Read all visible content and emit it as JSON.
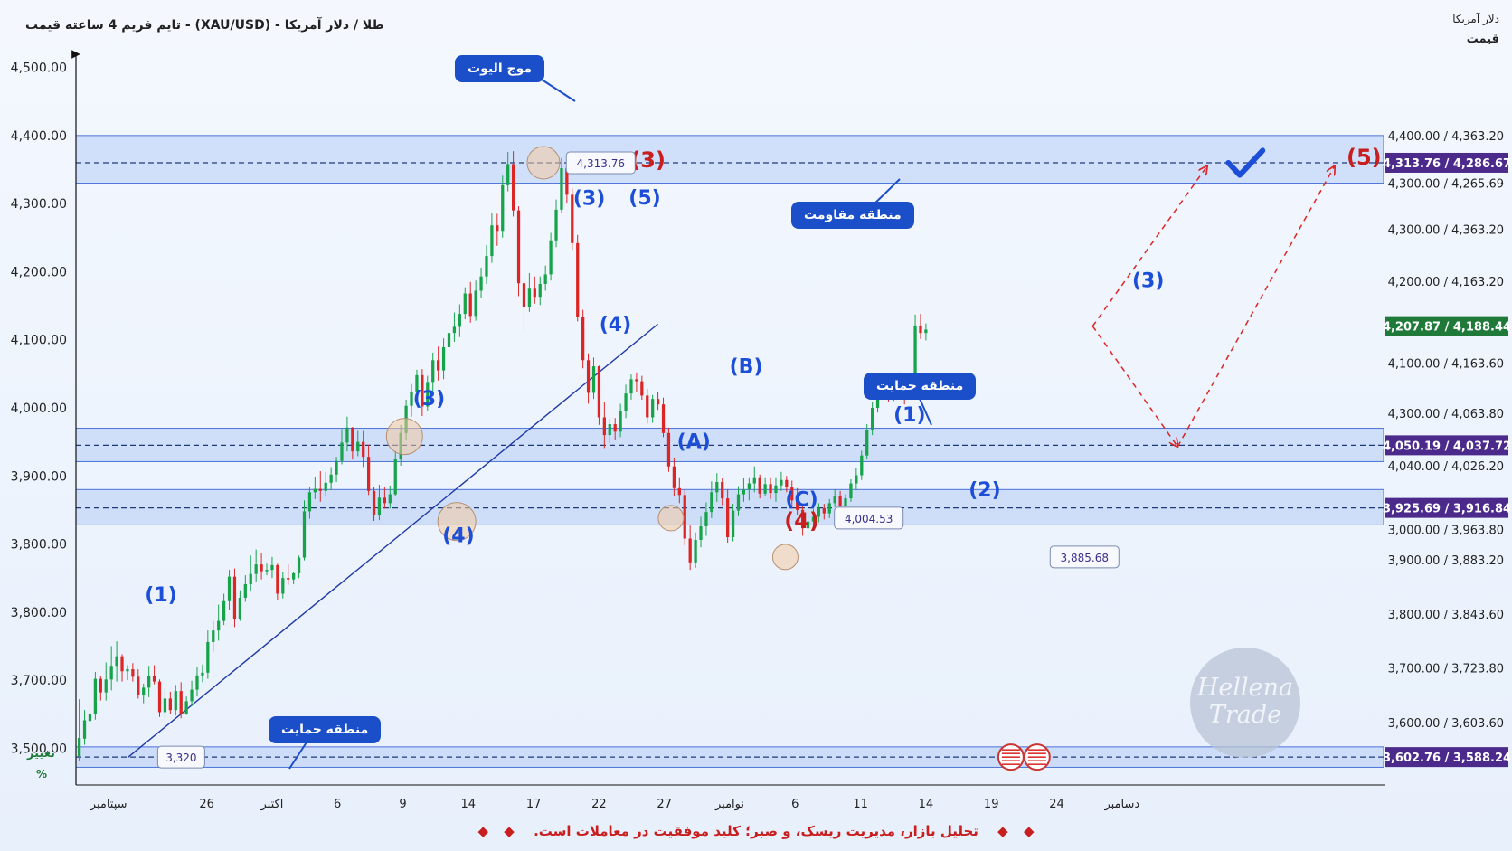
{
  "header": {
    "title": "طلا / دلار آمریکا - (XAU/USD) -  تایم فریم 4 ساعته   قیمت",
    "right_unit": "دلار آمریکا",
    "right_axis_title": "قیمت",
    "change_label": "تغییر",
    "percent_label": "%"
  },
  "footer": {
    "text": "تحلیل بازار، مدیریت ریسک، و صبر؛ کلید موفقیت در معاملات است.",
    "diamond": "◆"
  },
  "watermark": {
    "line1": "Hellena",
    "line2": "Trade"
  },
  "colors": {
    "up": "#16a34a",
    "down": "#dc2626",
    "wave_blue": "#1d4ed8",
    "wave_red": "#c81e1e",
    "zone_fill": "#bcd1f7",
    "zone_stroke": "#4a72d8",
    "callout": "#1a4fc9",
    "badge_purple": "#4b2a8c",
    "badge_green": "#1f7a3a",
    "trend": "#1f3aa8",
    "projection": "#e02424"
  },
  "chart_data": {
    "type": "candlestick",
    "title": "طلا / دلار آمریکا - (XAU/USD) - تایم فریم 4 ساعته قیمت",
    "x_axis": {
      "ticks": [
        "سپتامبر",
        "26",
        "اکتبر",
        "6",
        "9",
        "14",
        "17",
        "22",
        "27",
        "نوامبر",
        "6",
        "11",
        "14",
        "19",
        "24",
        "دسامبر"
      ]
    },
    "y_axis": {
      "left_ticks": [
        "4,500.00",
        "4,400.00",
        "4,300.00",
        "4,200.00",
        "4,100.00",
        "4,000.00",
        "3,900.00",
        "3,800.00",
        "3,800.00",
        "3,700.00",
        "3,500.00"
      ],
      "right_ticks": [
        "4,400.00 / 4,363.20",
        "4,300.00 / 4,265.69",
        "4,300.00 / 4,363.20",
        "4,200.00 / 4,163.20",
        "4,100.00 / 4,163.60",
        "4,300.00 / 4,063.80",
        "4,040.00 / 4,026.20",
        "3,000.00 / 3,963.80",
        "3,900.00 / 3,883.20",
        "3,800.00 / 3,843.60",
        "3,700.00 / 3,723.80",
        "3,600.00 / 3,603.60"
      ]
    },
    "price_badges": [
      {
        "text": "4,313.76 / 4,286.67",
        "level": 4360,
        "style": "purple"
      },
      {
        "text": "4,207.87 / 4,188.44",
        "level": 4120,
        "style": "green"
      },
      {
        "text": "4,050.19 / 4,037.72",
        "level": 3945,
        "style": "purple"
      },
      {
        "text": "3,925.69 / 3,916.84",
        "level": 3853,
        "style": "purple"
      },
      {
        "text": "3,602.76 / 3,588.24",
        "level": 3487,
        "style": "purple"
      }
    ],
    "zones": [
      {
        "name": "resistance",
        "from": 4330,
        "to": 4400,
        "mid": 4360
      },
      {
        "name": "support-mid",
        "from": 3921,
        "to": 3970,
        "mid": 3945
      },
      {
        "name": "support-low",
        "from": 3828,
        "to": 3880,
        "mid": 3853
      },
      {
        "name": "support-bottom",
        "from": 3472,
        "to": 3502,
        "mid": 3487
      }
    ],
    "callouts": [
      {
        "id": "wave-top",
        "text": "موج الیوت"
      },
      {
        "id": "resistance",
        "text": "منطقه مقاومت"
      },
      {
        "id": "support",
        "text": "منطقه حمایت"
      },
      {
        "id": "support-bottom",
        "text": "منطقه حمایت"
      }
    ],
    "price_notes": [
      {
        "text": "4,313.76",
        "x": 15,
        "y": 4360
      },
      {
        "text": "4,004.53",
        "x": 23.2,
        "y": 3838
      },
      {
        "text": "3,885.68",
        "x": 29.8,
        "y": 3781
      },
      {
        "text": "3,320",
        "x": 2.5,
        "y": 3487
      }
    ],
    "wave_labels": [
      {
        "text": "(1)",
        "x": 2.6,
        "y": 3716,
        "color": "blue"
      },
      {
        "text": "(3)",
        "x": 10.8,
        "y": 4004,
        "color": "blue"
      },
      {
        "text": "(4)",
        "x": 11.7,
        "y": 3803,
        "color": "blue"
      },
      {
        "text": "(3)",
        "x": 15.7,
        "y": 4298,
        "color": "blue"
      },
      {
        "text": "(5)",
        "x": 17.4,
        "y": 4299,
        "color": "blue"
      },
      {
        "text": "(4)",
        "x": 16.5,
        "y": 4113,
        "color": "blue"
      },
      {
        "text": "(3)",
        "x": 17.5,
        "y": 4353,
        "color": "red"
      },
      {
        "text": "(B)",
        "x": 20.5,
        "y": 4051,
        "color": "blue"
      },
      {
        "text": "(A)",
        "x": 18.9,
        "y": 3941,
        "color": "blue"
      },
      {
        "text": "(C)",
        "x": 22.2,
        "y": 3856,
        "color": "blue"
      },
      {
        "text": "(4)",
        "x": 22.2,
        "y": 3823,
        "color": "red"
      },
      {
        "text": "(1)",
        "x": 25.5,
        "y": 3980,
        "color": "blue"
      },
      {
        "text": "(2)",
        "x": 27.8,
        "y": 3870,
        "color": "blue"
      },
      {
        "text": "(3)",
        "x": 32.8,
        "y": 4177,
        "color": "blue"
      },
      {
        "text": "(5)",
        "x": 39.4,
        "y": 4357,
        "color": "red"
      }
    ],
    "ohlc": [
      {
        "o": 3488,
        "h": 3572,
        "l": 3482,
        "c": 3515
      },
      {
        "o": 3514,
        "h": 3556,
        "l": 3505,
        "c": 3541
      },
      {
        "o": 3540,
        "h": 3567,
        "l": 3529,
        "c": 3550
      },
      {
        "o": 3550,
        "h": 3612,
        "l": 3542,
        "c": 3602
      },
      {
        "o": 3602,
        "h": 3606,
        "l": 3570,
        "c": 3582
      },
      {
        "o": 3582,
        "h": 3626,
        "l": 3570,
        "c": 3601
      },
      {
        "o": 3601,
        "h": 3650,
        "l": 3585,
        "c": 3621
      },
      {
        "o": 3621,
        "h": 3657,
        "l": 3598,
        "c": 3635
      },
      {
        "o": 3635,
        "h": 3638,
        "l": 3598,
        "c": 3613
      },
      {
        "o": 3613,
        "h": 3622,
        "l": 3600,
        "c": 3616
      },
      {
        "o": 3616,
        "h": 3625,
        "l": 3598,
        "c": 3605
      },
      {
        "o": 3605,
        "h": 3616,
        "l": 3573,
        "c": 3578
      },
      {
        "o": 3578,
        "h": 3595,
        "l": 3566,
        "c": 3589
      },
      {
        "o": 3589,
        "h": 3621,
        "l": 3575,
        "c": 3606
      },
      {
        "o": 3606,
        "h": 3622,
        "l": 3594,
        "c": 3598
      },
      {
        "o": 3598,
        "h": 3601,
        "l": 3546,
        "c": 3553
      },
      {
        "o": 3553,
        "h": 3588,
        "l": 3545,
        "c": 3573
      },
      {
        "o": 3573,
        "h": 3583,
        "l": 3550,
        "c": 3556
      },
      {
        "o": 3556,
        "h": 3593,
        "l": 3548,
        "c": 3584
      },
      {
        "o": 3584,
        "h": 3597,
        "l": 3544,
        "c": 3551
      },
      {
        "o": 3551,
        "h": 3576,
        "l": 3549,
        "c": 3569
      },
      {
        "o": 3569,
        "h": 3599,
        "l": 3562,
        "c": 3586
      },
      {
        "o": 3586,
        "h": 3620,
        "l": 3576,
        "c": 3607
      },
      {
        "o": 3607,
        "h": 3623,
        "l": 3597,
        "c": 3611
      },
      {
        "o": 3611,
        "h": 3673,
        "l": 3602,
        "c": 3656
      },
      {
        "o": 3656,
        "h": 3687,
        "l": 3642,
        "c": 3673
      },
      {
        "o": 3673,
        "h": 3711,
        "l": 3658,
        "c": 3687
      },
      {
        "o": 3687,
        "h": 3727,
        "l": 3681,
        "c": 3716
      },
      {
        "o": 3716,
        "h": 3762,
        "l": 3703,
        "c": 3752
      },
      {
        "o": 3752,
        "h": 3764,
        "l": 3678,
        "c": 3690
      },
      {
        "o": 3690,
        "h": 3732,
        "l": 3687,
        "c": 3721
      },
      {
        "o": 3721,
        "h": 3754,
        "l": 3715,
        "c": 3741
      },
      {
        "o": 3741,
        "h": 3783,
        "l": 3730,
        "c": 3756
      },
      {
        "o": 3756,
        "h": 3792,
        "l": 3745,
        "c": 3770
      },
      {
        "o": 3770,
        "h": 3786,
        "l": 3748,
        "c": 3760
      },
      {
        "o": 3760,
        "h": 3771,
        "l": 3754,
        "c": 3762
      },
      {
        "o": 3762,
        "h": 3781,
        "l": 3750,
        "c": 3769
      },
      {
        "o": 3769,
        "h": 3771,
        "l": 3718,
        "c": 3727
      },
      {
        "o": 3727,
        "h": 3759,
        "l": 3720,
        "c": 3750
      },
      {
        "o": 3750,
        "h": 3770,
        "l": 3740,
        "c": 3748
      },
      {
        "o": 3748,
        "h": 3759,
        "l": 3741,
        "c": 3757
      },
      {
        "o": 3757,
        "h": 3783,
        "l": 3750,
        "c": 3780
      },
      {
        "o": 3780,
        "h": 3864,
        "l": 3776,
        "c": 3848
      },
      {
        "o": 3848,
        "h": 3883,
        "l": 3837,
        "c": 3876
      },
      {
        "o": 3876,
        "h": 3899,
        "l": 3866,
        "c": 3881
      },
      {
        "o": 3881,
        "h": 3907,
        "l": 3862,
        "c": 3878
      },
      {
        "o": 3878,
        "h": 3906,
        "l": 3870,
        "c": 3890
      },
      {
        "o": 3890,
        "h": 3913,
        "l": 3879,
        "c": 3902
      },
      {
        "o": 3902,
        "h": 3928,
        "l": 3891,
        "c": 3922
      },
      {
        "o": 3922,
        "h": 3969,
        "l": 3917,
        "c": 3949
      },
      {
        "o": 3949,
        "h": 3987,
        "l": 3936,
        "c": 3971
      },
      {
        "o": 3971,
        "h": 3972,
        "l": 3924,
        "c": 3936
      },
      {
        "o": 3936,
        "h": 3966,
        "l": 3929,
        "c": 3950
      },
      {
        "o": 3950,
        "h": 3966,
        "l": 3913,
        "c": 3928
      },
      {
        "o": 3928,
        "h": 3946,
        "l": 3872,
        "c": 3878
      },
      {
        "o": 3878,
        "h": 3884,
        "l": 3834,
        "c": 3843
      },
      {
        "o": 3843,
        "h": 3887,
        "l": 3835,
        "c": 3868
      },
      {
        "o": 3868,
        "h": 3883,
        "l": 3852,
        "c": 3860
      },
      {
        "o": 3860,
        "h": 3886,
        "l": 3852,
        "c": 3873
      },
      {
        "o": 3873,
        "h": 3937,
        "l": 3870,
        "c": 3925
      },
      {
        "o": 3925,
        "h": 3975,
        "l": 3915,
        "c": 3963
      },
      {
        "o": 3963,
        "h": 4012,
        "l": 3952,
        "c": 4003
      },
      {
        "o": 4003,
        "h": 4035,
        "l": 3987,
        "c": 4024
      },
      {
        "o": 4024,
        "h": 4056,
        "l": 4013,
        "c": 4048
      },
      {
        "o": 4048,
        "h": 4057,
        "l": 3988,
        "c": 4002
      },
      {
        "o": 4002,
        "h": 4047,
        "l": 3996,
        "c": 4038
      },
      {
        "o": 4038,
        "h": 4081,
        "l": 4022,
        "c": 4070
      },
      {
        "o": 4070,
        "h": 4090,
        "l": 4040,
        "c": 4055
      },
      {
        "o": 4055,
        "h": 4102,
        "l": 4042,
        "c": 4089
      },
      {
        "o": 4089,
        "h": 4124,
        "l": 4078,
        "c": 4110
      },
      {
        "o": 4110,
        "h": 4140,
        "l": 4097,
        "c": 4119
      },
      {
        "o": 4119,
        "h": 4152,
        "l": 4104,
        "c": 4138
      },
      {
        "o": 4138,
        "h": 4177,
        "l": 4130,
        "c": 4168
      },
      {
        "o": 4168,
        "h": 4185,
        "l": 4125,
        "c": 4135
      },
      {
        "o": 4135,
        "h": 4187,
        "l": 4128,
        "c": 4172
      },
      {
        "o": 4172,
        "h": 4206,
        "l": 4162,
        "c": 4193
      },
      {
        "o": 4193,
        "h": 4239,
        "l": 4182,
        "c": 4223
      },
      {
        "o": 4223,
        "h": 4286,
        "l": 4213,
        "c": 4268
      },
      {
        "o": 4268,
        "h": 4285,
        "l": 4238,
        "c": 4260
      },
      {
        "o": 4260,
        "h": 4341,
        "l": 4250,
        "c": 4327
      },
      {
        "o": 4327,
        "h": 4376,
        "l": 4318,
        "c": 4358
      },
      {
        "o": 4358,
        "h": 4377,
        "l": 4281,
        "c": 4290
      },
      {
        "o": 4290,
        "h": 4296,
        "l": 4164,
        "c": 4183
      },
      {
        "o": 4183,
        "h": 4192,
        "l": 4113,
        "c": 4148
      },
      {
        "o": 4148,
        "h": 4198,
        "l": 4141,
        "c": 4175
      },
      {
        "o": 4175,
        "h": 4193,
        "l": 4153,
        "c": 4163
      },
      {
        "o": 4163,
        "h": 4193,
        "l": 4151,
        "c": 4182
      },
      {
        "o": 4182,
        "h": 4209,
        "l": 4172,
        "c": 4196
      },
      {
        "o": 4196,
        "h": 4257,
        "l": 4187,
        "c": 4246
      },
      {
        "o": 4246,
        "h": 4306,
        "l": 4236,
        "c": 4291
      },
      {
        "o": 4291,
        "h": 4367,
        "l": 4286,
        "c": 4352
      },
      {
        "o": 4352,
        "h": 4355,
        "l": 4300,
        "c": 4313
      },
      {
        "o": 4313,
        "h": 4322,
        "l": 4232,
        "c": 4242
      },
      {
        "o": 4242,
        "h": 4254,
        "l": 4127,
        "c": 4133
      },
      {
        "o": 4133,
        "h": 4144,
        "l": 4058,
        "c": 4070
      },
      {
        "o": 4070,
        "h": 4080,
        "l": 4006,
        "c": 4022
      },
      {
        "o": 4022,
        "h": 4074,
        "l": 4013,
        "c": 4061
      },
      {
        "o": 4061,
        "h": 4062,
        "l": 3975,
        "c": 3986
      },
      {
        "o": 3986,
        "h": 4009,
        "l": 3941,
        "c": 3960
      },
      {
        "o": 3960,
        "h": 3984,
        "l": 3948,
        "c": 3976
      },
      {
        "o": 3976,
        "h": 3985,
        "l": 3953,
        "c": 3965
      },
      {
        "o": 3965,
        "h": 4006,
        "l": 3957,
        "c": 3995
      },
      {
        "o": 3995,
        "h": 4034,
        "l": 3985,
        "c": 4021
      },
      {
        "o": 4021,
        "h": 4049,
        "l": 4012,
        "c": 4042
      },
      {
        "o": 4042,
        "h": 4052,
        "l": 4024,
        "c": 4039
      },
      {
        "o": 4039,
        "h": 4047,
        "l": 4012,
        "c": 4018
      },
      {
        "o": 4018,
        "h": 4028,
        "l": 3977,
        "c": 3986
      },
      {
        "o": 3986,
        "h": 4019,
        "l": 3978,
        "c": 4013
      },
      {
        "o": 4013,
        "h": 4023,
        "l": 3997,
        "c": 4005
      },
      {
        "o": 4005,
        "h": 4015,
        "l": 3957,
        "c": 3963
      },
      {
        "o": 3963,
        "h": 3971,
        "l": 3906,
        "c": 3914
      },
      {
        "o": 3914,
        "h": 3927,
        "l": 3871,
        "c": 3882
      },
      {
        "o": 3882,
        "h": 3898,
        "l": 3860,
        "c": 3872
      },
      {
        "o": 3872,
        "h": 3880,
        "l": 3798,
        "c": 3808
      },
      {
        "o": 3808,
        "h": 3827,
        "l": 3762,
        "c": 3773
      },
      {
        "o": 3773,
        "h": 3817,
        "l": 3765,
        "c": 3806
      },
      {
        "o": 3806,
        "h": 3840,
        "l": 3795,
        "c": 3826
      },
      {
        "o": 3826,
        "h": 3861,
        "l": 3812,
        "c": 3847
      },
      {
        "o": 3847,
        "h": 3892,
        "l": 3838,
        "c": 3876
      },
      {
        "o": 3876,
        "h": 3904,
        "l": 3862,
        "c": 3891
      },
      {
        "o": 3891,
        "h": 3897,
        "l": 3857,
        "c": 3867
      },
      {
        "o": 3867,
        "h": 3880,
        "l": 3802,
        "c": 3810
      },
      {
        "o": 3810,
        "h": 3859,
        "l": 3804,
        "c": 3849
      },
      {
        "o": 3849,
        "h": 3885,
        "l": 3841,
        "c": 3873
      },
      {
        "o": 3873,
        "h": 3897,
        "l": 3862,
        "c": 3880
      },
      {
        "o": 3880,
        "h": 3898,
        "l": 3864,
        "c": 3889
      },
      {
        "o": 3889,
        "h": 3914,
        "l": 3876,
        "c": 3898
      },
      {
        "o": 3898,
        "h": 3902,
        "l": 3867,
        "c": 3874
      },
      {
        "o": 3874,
        "h": 3898,
        "l": 3870,
        "c": 3888
      },
      {
        "o": 3888,
        "h": 3898,
        "l": 3866,
        "c": 3875
      },
      {
        "o": 3875,
        "h": 3898,
        "l": 3862,
        "c": 3886
      },
      {
        "o": 3886,
        "h": 3906,
        "l": 3878,
        "c": 3894
      },
      {
        "o": 3894,
        "h": 3900,
        "l": 3876,
        "c": 3883
      },
      {
        "o": 3883,
        "h": 3893,
        "l": 3852,
        "c": 3864
      },
      {
        "o": 3864,
        "h": 3882,
        "l": 3842,
        "c": 3850
      },
      {
        "o": 3850,
        "h": 3856,
        "l": 3812,
        "c": 3823
      },
      {
        "o": 3823,
        "h": 3841,
        "l": 3807,
        "c": 3833
      },
      {
        "o": 3833,
        "h": 3851,
        "l": 3822,
        "c": 3840
      },
      {
        "o": 3840,
        "h": 3860,
        "l": 3832,
        "c": 3853
      },
      {
        "o": 3853,
        "h": 3859,
        "l": 3836,
        "c": 3845
      },
      {
        "o": 3845,
        "h": 3866,
        "l": 3838,
        "c": 3860
      },
      {
        "o": 3860,
        "h": 3880,
        "l": 3854,
        "c": 3870
      },
      {
        "o": 3870,
        "h": 3878,
        "l": 3848,
        "c": 3856
      },
      {
        "o": 3856,
        "h": 3873,
        "l": 3847,
        "c": 3867
      },
      {
        "o": 3867,
        "h": 3895,
        "l": 3862,
        "c": 3889
      },
      {
        "o": 3889,
        "h": 3911,
        "l": 3880,
        "c": 3901
      },
      {
        "o": 3901,
        "h": 3937,
        "l": 3894,
        "c": 3930
      },
      {
        "o": 3930,
        "h": 3976,
        "l": 3924,
        "c": 3967
      },
      {
        "o": 3967,
        "h": 4008,
        "l": 3960,
        "c": 4000
      },
      {
        "o": 4000,
        "h": 4037,
        "l": 3993,
        "c": 4027
      },
      {
        "o": 4027,
        "h": 4045,
        "l": 4018,
        "c": 4038
      },
      {
        "o": 4038,
        "h": 4049,
        "l": 4008,
        "c": 4016
      },
      {
        "o": 4016,
        "h": 4044,
        "l": 4010,
        "c": 4034
      },
      {
        "o": 4034,
        "h": 4052,
        "l": 4023,
        "c": 4036
      },
      {
        "o": 4036,
        "h": 4046,
        "l": 4005,
        "c": 4018
      },
      {
        "o": 4018,
        "h": 4036,
        "l": 4012,
        "c": 4029
      },
      {
        "o": 4029,
        "h": 4137,
        "l": 4024,
        "c": 4121
      },
      {
        "o": 4121,
        "h": 4138,
        "l": 4101,
        "c": 4110
      },
      {
        "o": 4110,
        "h": 4124,
        "l": 4099,
        "c": 4115
      }
    ]
  }
}
